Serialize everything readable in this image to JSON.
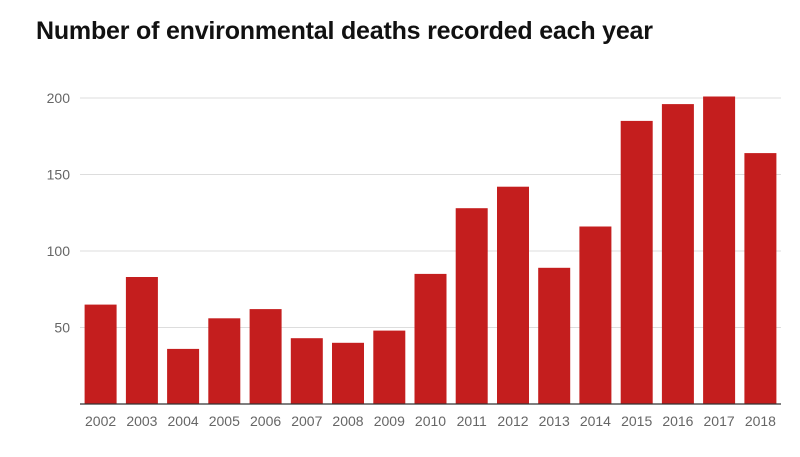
{
  "chart_data": {
    "type": "bar",
    "title": "Number of environmental deaths recorded each year",
    "xlabel": "",
    "ylabel": "",
    "categories": [
      "2002",
      "2003",
      "2004",
      "2005",
      "2006",
      "2007",
      "2008",
      "2009",
      "2010",
      "2011",
      "2012",
      "2013",
      "2014",
      "2015",
      "2016",
      "2017",
      "2018"
    ],
    "values": [
      65,
      83,
      36,
      56,
      62,
      43,
      40,
      48,
      85,
      128,
      142,
      89,
      116,
      185,
      196,
      201,
      164
    ],
    "ylim": [
      0,
      210
    ],
    "yticks": [
      50,
      100,
      150,
      200
    ],
    "grid": true,
    "legend": "none",
    "bar_color": "#c41e1e"
  }
}
